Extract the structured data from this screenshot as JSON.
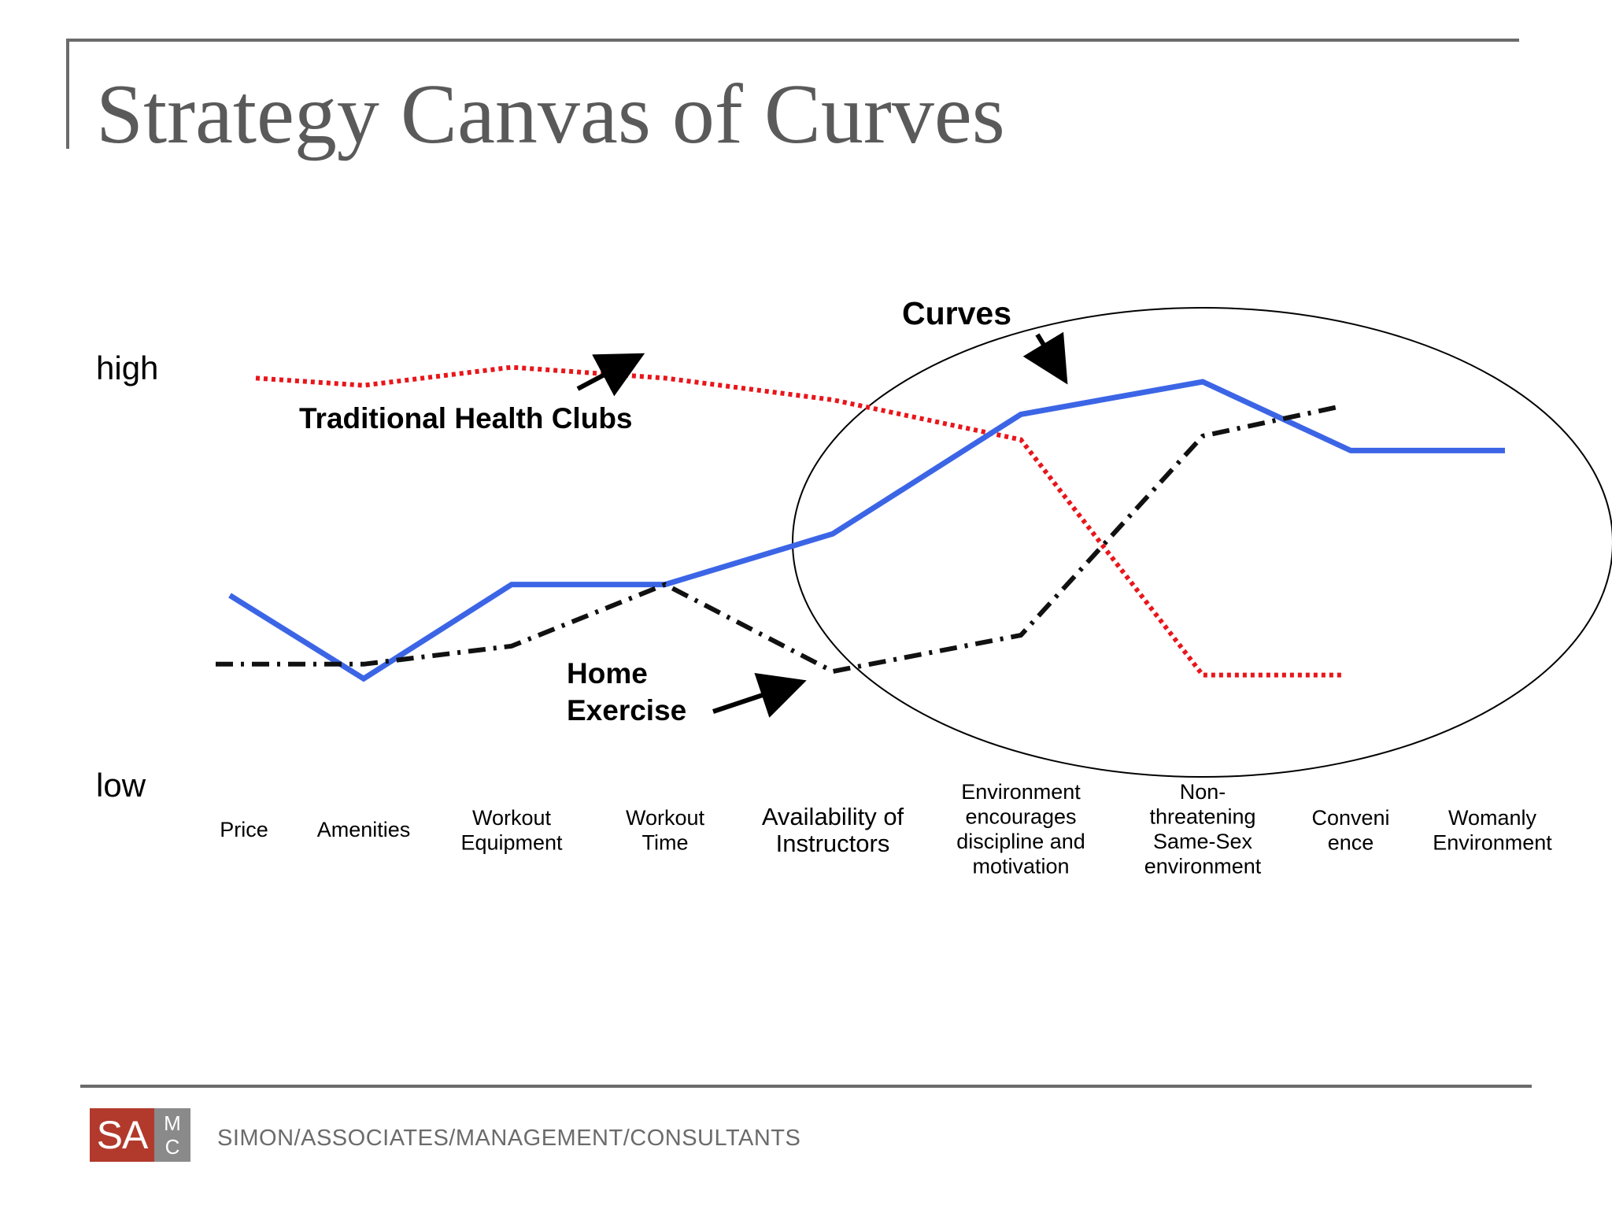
{
  "slide": {
    "title": "Strategy Canvas of Curves",
    "footer": "SIMON/ASSOCIATES/MANAGEMENT/CONSULTANTS",
    "logo": {
      "main": "SA",
      "small_top": "M",
      "small_bottom": "C"
    }
  },
  "chart_data": {
    "type": "line",
    "title": "",
    "categories": [
      "Price",
      "Amenities",
      "Workout\nEquipment",
      "Workout\nTime",
      "Availability of\nInstructors",
      "Environment\nencourages\ndiscipline and\nmotivation",
      "Non-\nthreatening\nSame-Sex\nenvironment",
      "Conveni\nence",
      "Womanly\nEnvironment"
    ],
    "y_labels": {
      "high": "high",
      "low": "low"
    },
    "ylim": [
      0,
      10
    ],
    "grid": false,
    "series": [
      {
        "name": "Traditional Health Clubs",
        "color": "#e8161b",
        "style": "dotted",
        "values": [
          9.6,
          9.4,
          9.9,
          9.6,
          9.0,
          7.9,
          1.4,
          1.4,
          null
        ]
      },
      {
        "name": "Curves",
        "color": "#3c65e6",
        "style": "solid",
        "values": [
          3.6,
          1.3,
          3.9,
          3.9,
          5.3,
          8.6,
          9.5,
          7.6,
          7.6
        ]
      },
      {
        "name": "Home Exercise",
        "color": "#111111",
        "style": "dash-dot",
        "values": [
          1.7,
          1.7,
          2.2,
          3.9,
          1.5,
          2.5,
          8.0,
          8.8,
          null
        ]
      }
    ],
    "annotations": [
      {
        "text": "Curves",
        "points_to": "Curves"
      },
      {
        "text": "Traditional Health Clubs",
        "points_to": "Traditional Health Clubs"
      },
      {
        "text": "Home\nExercise",
        "points_to": "Home Exercise"
      }
    ],
    "highlight": "ellipse around last four factors"
  }
}
